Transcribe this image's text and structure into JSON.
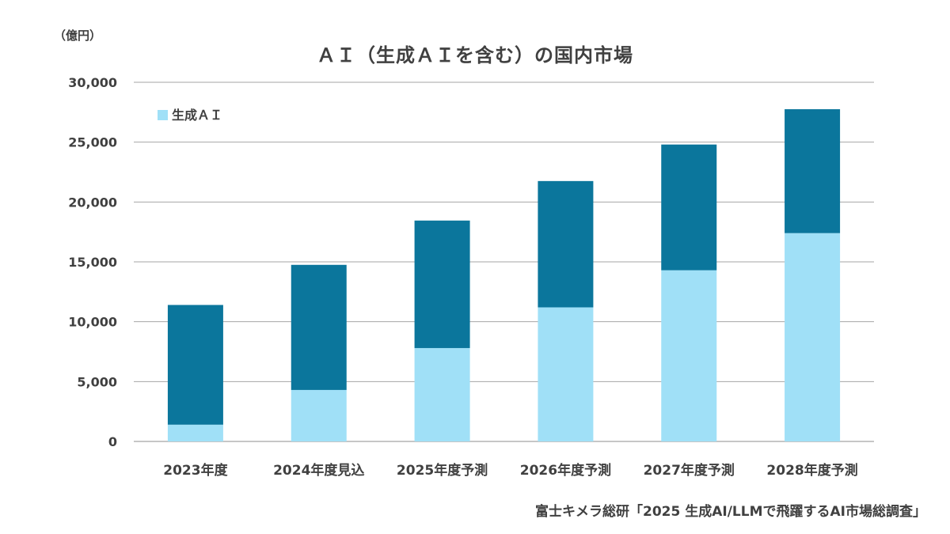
{
  "chart_data": {
    "type": "bar",
    "stacked": true,
    "title": "ＡＩ（生成ＡＩを含む）の国内市場",
    "ylabel": "（億円）",
    "ylim": [
      0,
      30000
    ],
    "yticks": [
      "0",
      "5,000",
      "10,000",
      "15,000",
      "20,000",
      "25,000",
      "30,000"
    ],
    "ytick_values": [
      0,
      5000,
      10000,
      15000,
      20000,
      25000,
      30000
    ],
    "grid": true,
    "legend_position": "top-left",
    "categories": [
      "2023年度",
      "2024年度見込",
      "2025年度予測",
      "2026年度予測",
      "2027年度予測",
      "2028年度予測"
    ],
    "series": [
      {
        "name": "生成ＡＩ",
        "color": "#a0e0f7",
        "values": [
          1400,
          4300,
          7800,
          11200,
          14300,
          17400
        ]
      },
      {
        "color": "#0b769c",
        "values": [
          10000,
          10450,
          10650,
          10550,
          10500,
          10350
        ]
      }
    ],
    "totals": [
      11400,
      14750,
      18450,
      21750,
      24800,
      27750
    ],
    "source": "富士キメラ総研「2025  生成AI/LLMで飛躍するAI市場総調査」"
  }
}
